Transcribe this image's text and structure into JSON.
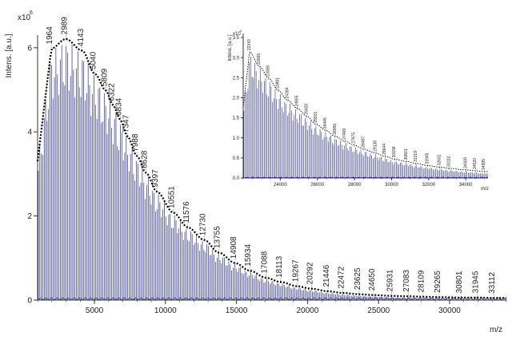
{
  "chart_data": [
    {
      "type": "line",
      "title": "",
      "ylabel": "Intens. [a.u.]",
      "y_multiplier": "x10",
      "y_multiplier_exp": "6",
      "xlabel": "m/z",
      "xlim": [
        1000,
        34000
      ],
      "ylim": [
        0,
        6.3
      ],
      "xticks": [
        5000,
        10000,
        15000,
        20000,
        25000,
        30000
      ],
      "yticks": [
        0,
        2,
        4,
        6
      ],
      "xtick_labels": [
        "5000",
        "10000",
        "15000",
        "20000",
        "25000",
        "30000"
      ],
      "ytick_labels": [
        "0",
        "2",
        "4",
        "6"
      ],
      "peak_labels": [
        "1964",
        "2989",
        "4143",
        "5040",
        "5809",
        "6322",
        "6834",
        "7347",
        "7988",
        "8628",
        "9397",
        "10551",
        "11576",
        "12730",
        "13755",
        "14908",
        "15934",
        "17088",
        "18113",
        "19267",
        "20292",
        "21446",
        "22472",
        "23625",
        "24650",
        "25931",
        "27083",
        "28109",
        "29265",
        "30801",
        "31945",
        "33112"
      ],
      "peak_x": [
        1964,
        2989,
        4143,
        5040,
        5809,
        6322,
        6834,
        7347,
        7988,
        8628,
        9397,
        10551,
        11576,
        12730,
        13755,
        14908,
        15934,
        17088,
        18113,
        19267,
        20292,
        21446,
        22472,
        23625,
        24650,
        25931,
        27083,
        28109,
        29265,
        30801,
        31945,
        33112
      ],
      "peak_y": [
        5.95,
        6.18,
        5.9,
        5.35,
        4.95,
        4.6,
        4.25,
        3.85,
        3.4,
        3.0,
        2.55,
        2.05,
        1.7,
        1.4,
        1.1,
        0.85,
        0.67,
        0.5,
        0.4,
        0.3,
        0.24,
        0.18,
        0.14,
        0.11,
        0.09,
        0.07,
        0.06,
        0.05,
        0.04,
        0.03,
        0.03,
        0.02
      ],
      "envelope_peak_mz": 3000,
      "envelope_max": 6.18,
      "line_color": "#2a2f8c",
      "envelope_color": "#000000",
      "grid": false
    },
    {
      "type": "line",
      "title": "",
      "inset": true,
      "ylabel": "Intens. [a.u.]",
      "y_multiplier": "x10",
      "y_multiplier_exp": "4",
      "xlabel": "m/z",
      "xlim": [
        22000,
        35200
      ],
      "ylim": [
        0,
        3.6
      ],
      "xticks": [
        24000,
        26000,
        28000,
        30000,
        32000,
        34000
      ],
      "yticks": [
        0.0,
        0.5,
        1.0,
        1.5,
        2.0,
        2.5,
        3.0,
        3.5
      ],
      "xtick_labels": [
        "24000",
        "26000",
        "28000",
        "30000",
        "32000",
        "34000"
      ],
      "ytick_labels": [
        "0.0",
        "0.5",
        "1.0",
        "1.5",
        "2.0",
        "2.5",
        "3.0",
        "3.5"
      ],
      "peak_labels": [
        "22343",
        "22865",
        "23369",
        "23881",
        "24394",
        "24905",
        "25420",
        "25931",
        "26445",
        "26956",
        "27469",
        "27975",
        "28487",
        "29138",
        "29644",
        "30158",
        "30801",
        "31319",
        "31945",
        "32601",
        "33112",
        "34009",
        "34520",
        "34995"
      ],
      "peak_x": [
        22343,
        22865,
        23369,
        23881,
        24394,
        24905,
        25420,
        25931,
        26445,
        26956,
        27469,
        27975,
        28487,
        29138,
        29644,
        30158,
        30801,
        31319,
        31945,
        32601,
        33112,
        34009,
        34520,
        34995
      ],
      "peak_y": [
        3.1,
        2.75,
        2.45,
        2.15,
        1.9,
        1.7,
        1.5,
        1.3,
        1.15,
        1.0,
        0.88,
        0.78,
        0.68,
        0.58,
        0.5,
        0.43,
        0.37,
        0.32,
        0.27,
        0.23,
        0.2,
        0.16,
        0.14,
        0.12
      ],
      "line_color": "#2a2f8c",
      "envelope_color": "#000000",
      "grid": false
    }
  ]
}
